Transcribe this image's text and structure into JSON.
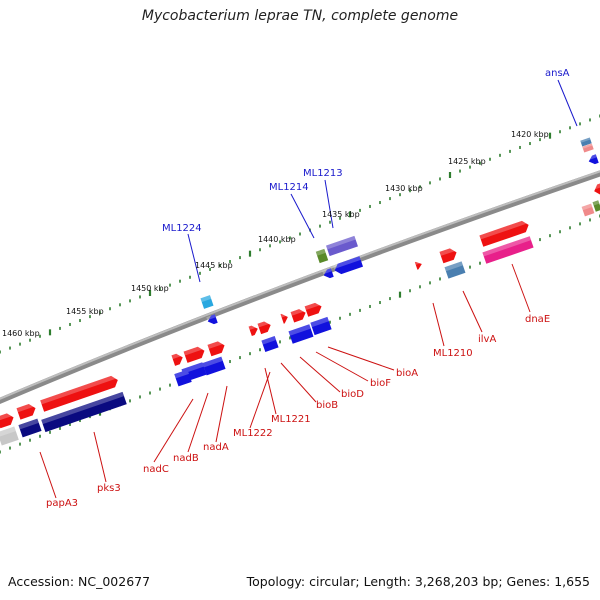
{
  "title": "Mycobacterium leprae TN, complete genome",
  "footer": {
    "accession": "Accession: NC_002677",
    "topology": "Topology: circular; Length: 3,268,203 bp; Genes: 1,655"
  },
  "scale_labels": [
    "1420 kbp",
    "1425 kbp",
    "1430 kbp",
    "1435 kbp",
    "1440 kbp",
    "1445 kbp",
    "1450 kbp",
    "1455 kbp",
    "1460 kbp"
  ],
  "gene_labels_outer": [
    "ansA",
    "ML1213",
    "ML1214",
    "ML1224"
  ],
  "gene_labels_inner": [
    "dnaE",
    "ilvA",
    "ML1210",
    "bioA",
    "bioF",
    "bioD",
    "bioB",
    "ML1221",
    "ML1222",
    "nadA",
    "nadB",
    "nadC",
    "pks3",
    "papA3"
  ],
  "colors": {
    "backbone": "#8a8a8a",
    "tick": "#2e7d2e",
    "outer_label": "#1a1acc",
    "inner_label": "#cc1111",
    "forward_gene": "#ee1111",
    "reverse_gene": "#1111dd",
    "dark_gene": "#0a0a80",
    "pink_gene": "#e8208a",
    "grey_gene": "#c8c8c8",
    "steel_gene": "#4a7fb0",
    "olive_gene": "#5a8a2a",
    "lavender_gene": "#6a5acd",
    "cyan_gene": "#29a8e0",
    "salmon_gene": "#f08a8a"
  }
}
